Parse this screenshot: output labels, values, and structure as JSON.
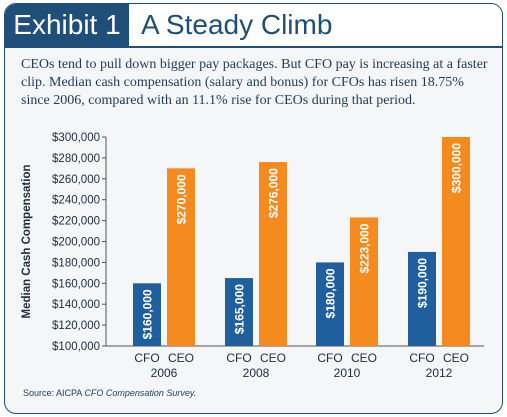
{
  "header": {
    "exhibit_label": "Exhibit 1",
    "title": "A Steady Climb",
    "intro": "CEOs tend to pull down bigger pay packages. But CFO pay is increasing at a faster clip. Median cash compensation (salary and bonus) for CFOs has risen 18.75% since 2006, compared with an 11.1% rise for CEOs during that period."
  },
  "source": {
    "prefix": "Source:  AICPA ",
    "title": "CFO Compensation Survey."
  },
  "colors": {
    "frame": "#1f4e79",
    "cfo": "#1f5f9e",
    "ceo": "#f58a1f"
  },
  "chart_data": {
    "type": "bar",
    "categories": [
      "2006",
      "2008",
      "2010",
      "2012"
    ],
    "bar_labels": [
      "CFO",
      "CEO"
    ],
    "series": [
      {
        "values": [
          160000,
          165000,
          180000,
          190000
        ],
        "labels": [
          "$160,000",
          "$165,000",
          "$180,000",
          "$190,000"
        ]
      },
      {
        "values": [
          270000,
          276000,
          223000,
          300000
        ],
        "labels": [
          "$270,000",
          "$276,000",
          "$223,000",
          "$300,000"
        ]
      }
    ],
    "ylabel": "Median Cash Compensation",
    "ylim": [
      100000,
      300000
    ],
    "yticks": [
      100000,
      120000,
      140000,
      160000,
      180000,
      200000,
      220000,
      240000,
      260000,
      280000,
      300000
    ],
    "ytick_labels": [
      "$100,000",
      "$120,000",
      "$140,000",
      "$160,000",
      "$180,000",
      "$200,000",
      "$220,000",
      "$240,000",
      "$260,000",
      "$280,000",
      "$300,000"
    ],
    "grid": false
  }
}
